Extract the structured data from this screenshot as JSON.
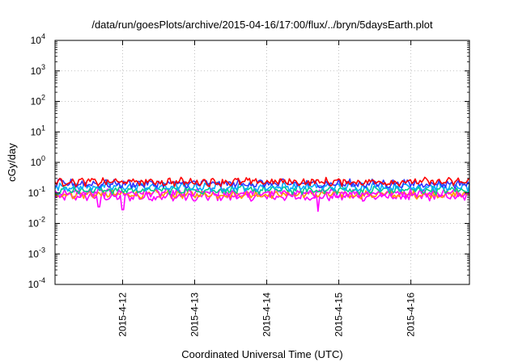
{
  "chart_data": {
    "type": "line",
    "title": "/data/run/goesPlots/archive/2015-04-16/17:00/flux/../bryn/5daysEarth.plot",
    "xlabel": "Coordinated Universal Time (UTC)",
    "ylabel": "cGy/day",
    "yscale": "log",
    "ylim": [
      0.0001,
      10000
    ],
    "xlim": [
      "2015-04-11T01:30",
      "2015-04-16T19:30"
    ],
    "grid": true,
    "legend": "none",
    "y_ticks": [
      {
        "base": "10",
        "exp": "-4"
      },
      {
        "base": "10",
        "exp": "-3"
      },
      {
        "base": "10",
        "exp": "-2"
      },
      {
        "base": "10",
        "exp": "-1"
      },
      {
        "base": "10",
        "exp": "0"
      },
      {
        "base": "10",
        "exp": "1"
      },
      {
        "base": "10",
        "exp": "2"
      },
      {
        "base": "10",
        "exp": "3"
      },
      {
        "base": "10",
        "exp": "4"
      }
    ],
    "x_ticks": [
      {
        "date": "2015-04-12",
        "label": "2015-4-12"
      },
      {
        "date": "2015-04-13",
        "label": "2015-4-13"
      },
      {
        "date": "2015-04-14",
        "label": "2015-4-14"
      },
      {
        "date": "2015-04-15",
        "label": "2015-4-15"
      },
      {
        "date": "2015-04-16",
        "label": "2015-4-16"
      }
    ],
    "series": [
      {
        "color": "#ff00ff",
        "level": 0.075,
        "dips": [
          {
            "t": "2015-04-11T16:00",
            "v": 0.035
          },
          {
            "t": "2015-04-12T00:00",
            "v": 0.028
          },
          {
            "t": "2015-04-14T17:00",
            "v": 0.025
          },
          {
            "t": "2015-04-13T00:00",
            "v": 0.055
          }
        ]
      },
      {
        "color": "#ff9900",
        "level": 0.09,
        "dips": []
      },
      {
        "color": "#ff00ff",
        "level": 0.1,
        "dips": []
      },
      {
        "color": "#00cc88",
        "level": 0.125,
        "dips": []
      },
      {
        "color": "#00aaff",
        "level": 0.16,
        "dips": []
      },
      {
        "color": "#3333ff",
        "level": 0.2,
        "dips": []
      },
      {
        "color": "#ff0000",
        "level": 0.23,
        "dips": []
      }
    ]
  }
}
